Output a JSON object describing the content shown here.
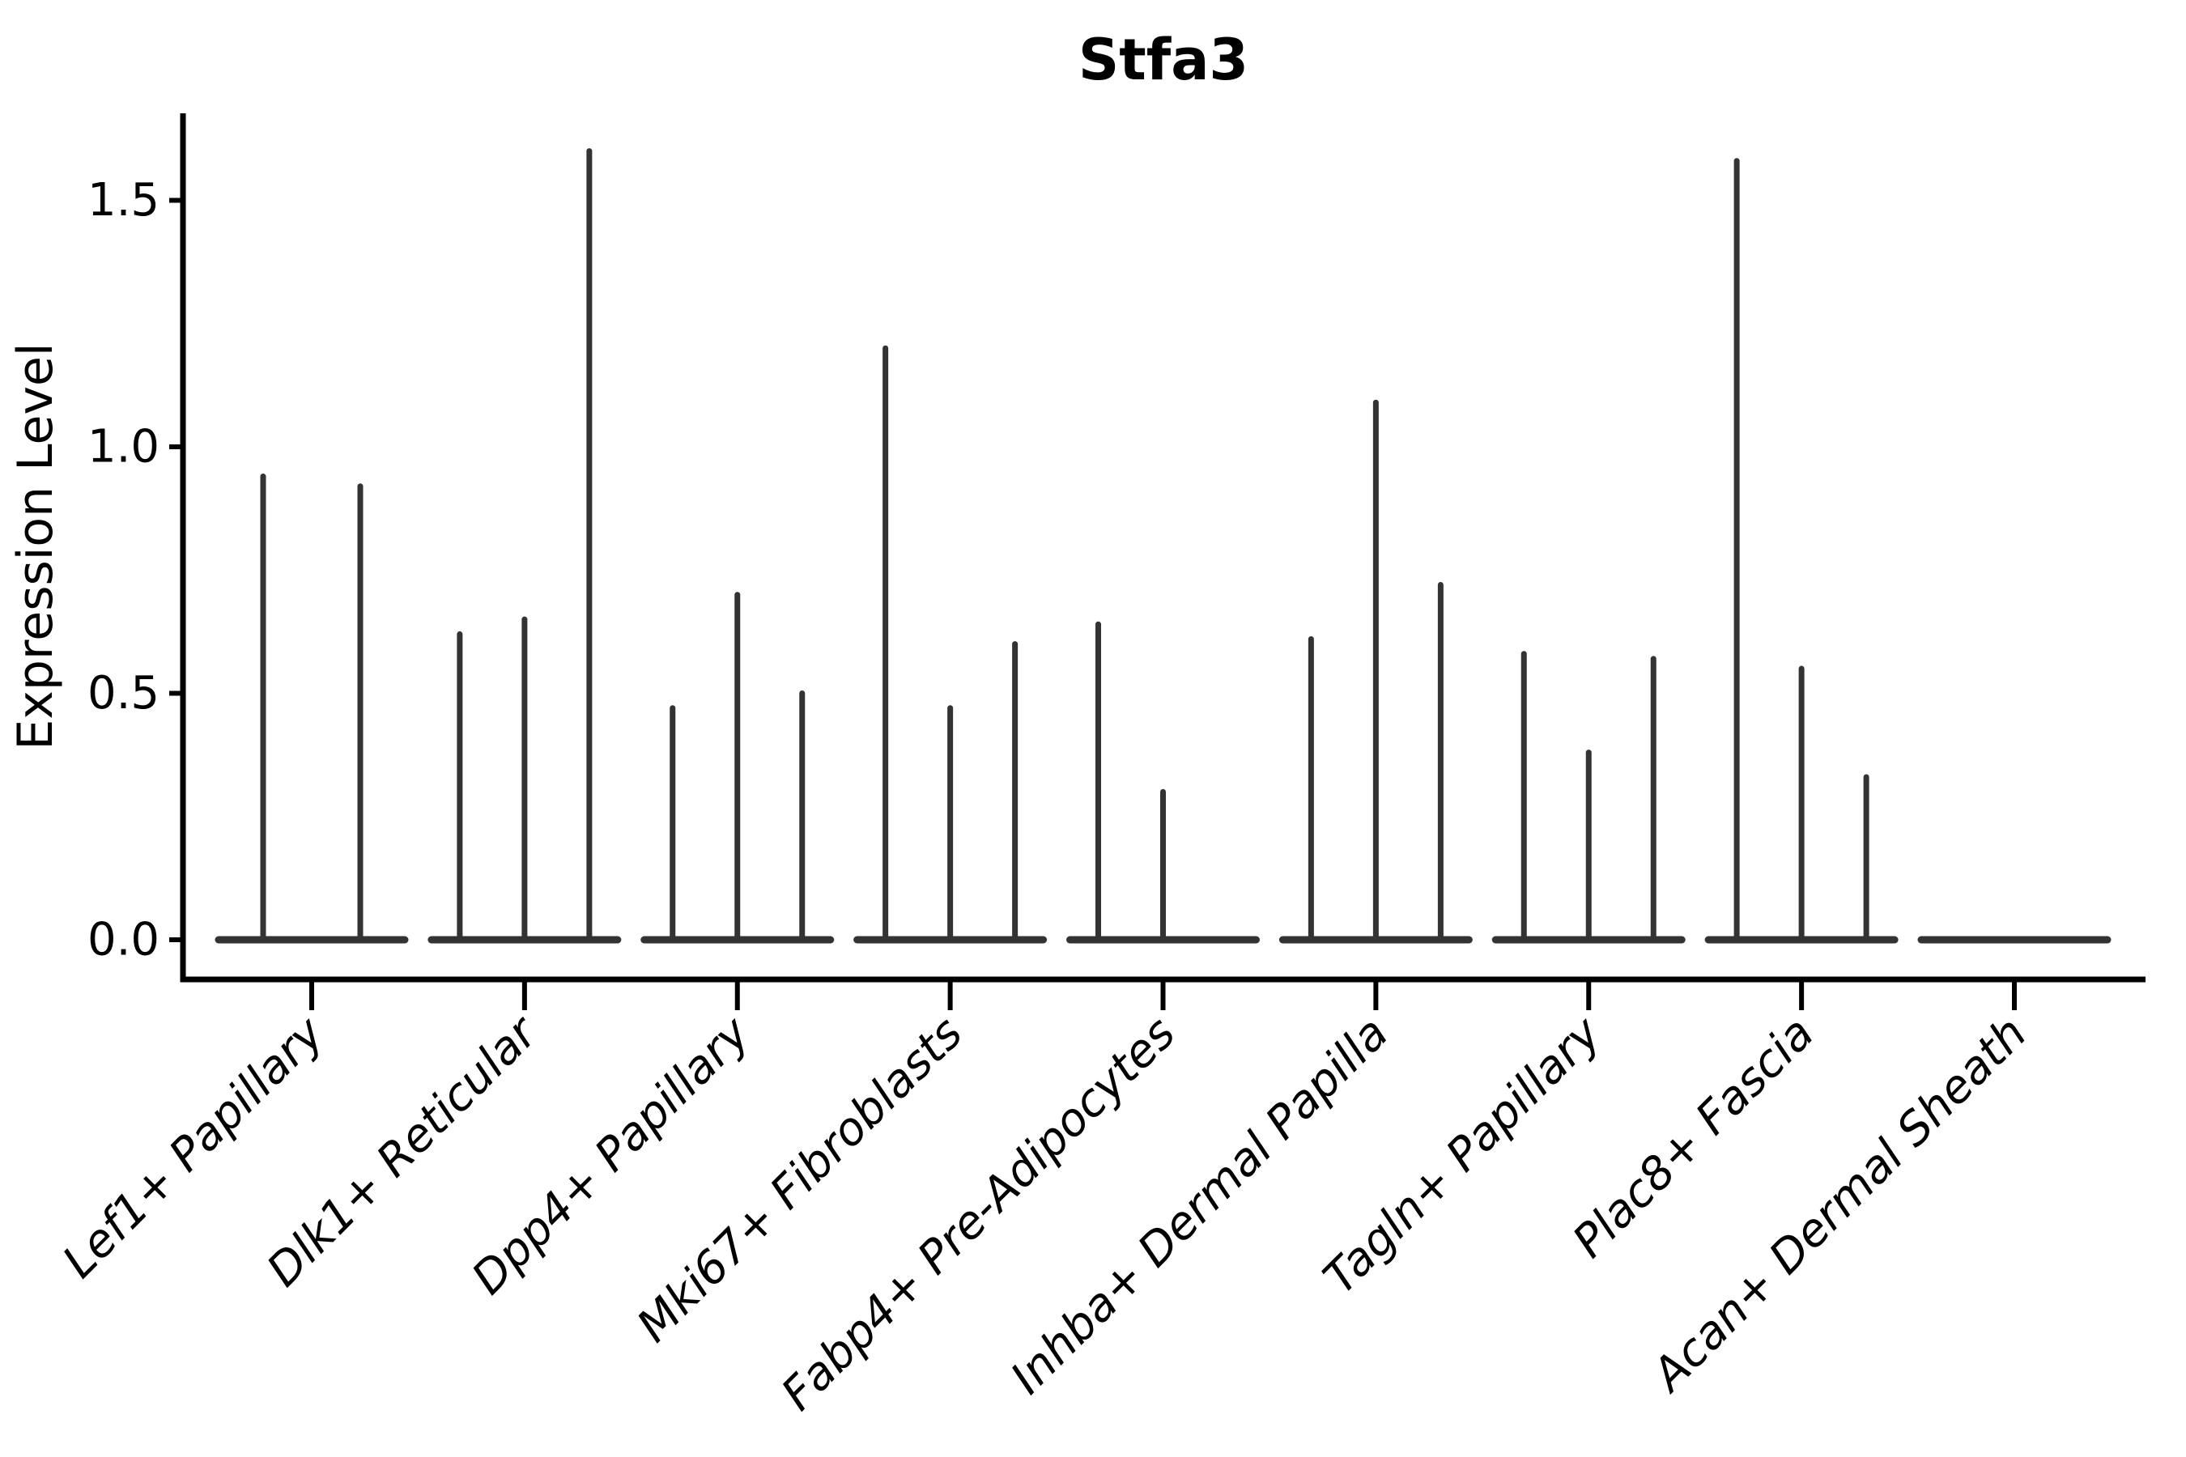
{
  "figure": {
    "title": "Stfa3",
    "y_axis_label": "Expression Level"
  },
  "chart_data": {
    "type": "violin",
    "title": "Stfa3",
    "xlabel": "",
    "ylabel": "Expression Level",
    "ylim": [
      -0.08,
      1.68
    ],
    "ytick_labels": [
      "0.0",
      "0.5",
      "1.0",
      "1.5"
    ],
    "grid": false,
    "legend": "none",
    "style": "violins collapsed at zero baseline with narrow spikes up to each violin maximum",
    "categories": [
      "Lef1+ Papillary",
      "Dlk1+ Reticular",
      "Dpp4+ Papillary",
      "Mki67+ Fibroblasts",
      "Fabp4+ Pre-Adipocytes",
      "Inhba+ Dermal Papilla",
      "Tagln+ Papillary",
      "Plac8+ Fascia",
      "Acan+ Dermal Sheath"
    ],
    "groups": [
      {
        "category": "Lef1+ Papillary",
        "violin_peaks": [
          0.94,
          0.92
        ]
      },
      {
        "category": "Dlk1+ Reticular",
        "violin_peaks": [
          0.62,
          0.65,
          1.6
        ]
      },
      {
        "category": "Dpp4+ Papillary",
        "violin_peaks": [
          0.47,
          0.7,
          0.5
        ]
      },
      {
        "category": "Mki67+ Fibroblasts",
        "violin_peaks": [
          1.2,
          0.47,
          0.6
        ]
      },
      {
        "category": "Fabp4+ Pre-Adipocytes",
        "violin_peaks": [
          0.64,
          0.3,
          0.0
        ]
      },
      {
        "category": "Inhba+ Dermal Papilla",
        "violin_peaks": [
          0.61,
          1.09,
          0.72
        ]
      },
      {
        "category": "Tagln+ Papillary",
        "violin_peaks": [
          0.58,
          0.38,
          0.57
        ]
      },
      {
        "category": "Plac8+ Fascia",
        "violin_peaks": [
          1.58,
          0.55,
          0.33
        ]
      },
      {
        "category": "Acan+ Dermal Sheath",
        "violin_peaks": [
          0.0,
          0.0,
          0.0
        ]
      }
    ]
  },
  "colors": {
    "violin_outline": "#333333",
    "axis": "#000000",
    "text": "#000000",
    "background": "#ffffff"
  }
}
